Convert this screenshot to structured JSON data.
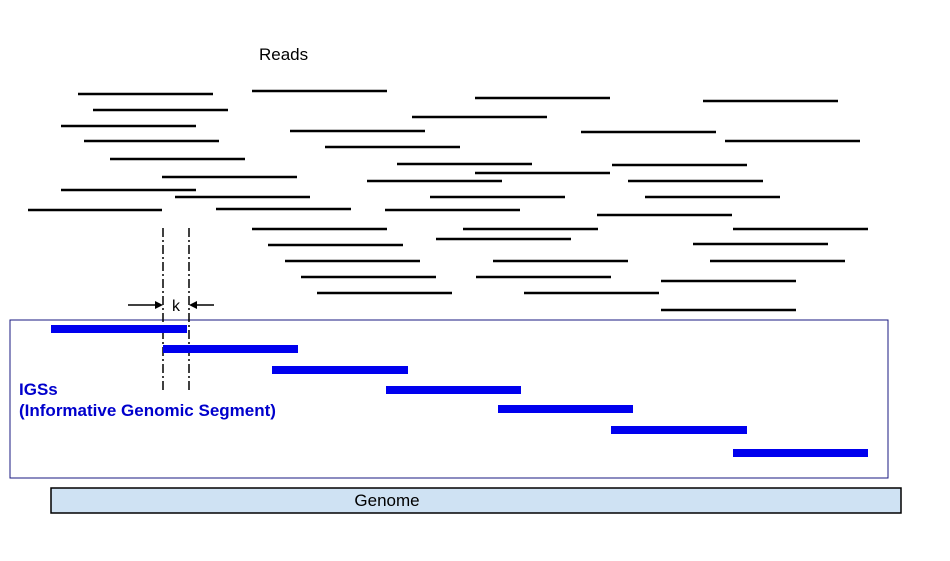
{
  "labels": {
    "reads": "Reads",
    "k": "k",
    "igs_line1": "IGSs",
    "igs_line2": "(Informative Genomic Segment)",
    "genome": "Genome"
  },
  "colors": {
    "read": "#000000",
    "igs": "#0000ee",
    "igs_text": "#0000cc",
    "box_border": "#1a1a80",
    "genome_fill": "#cfe2f3"
  }
}
